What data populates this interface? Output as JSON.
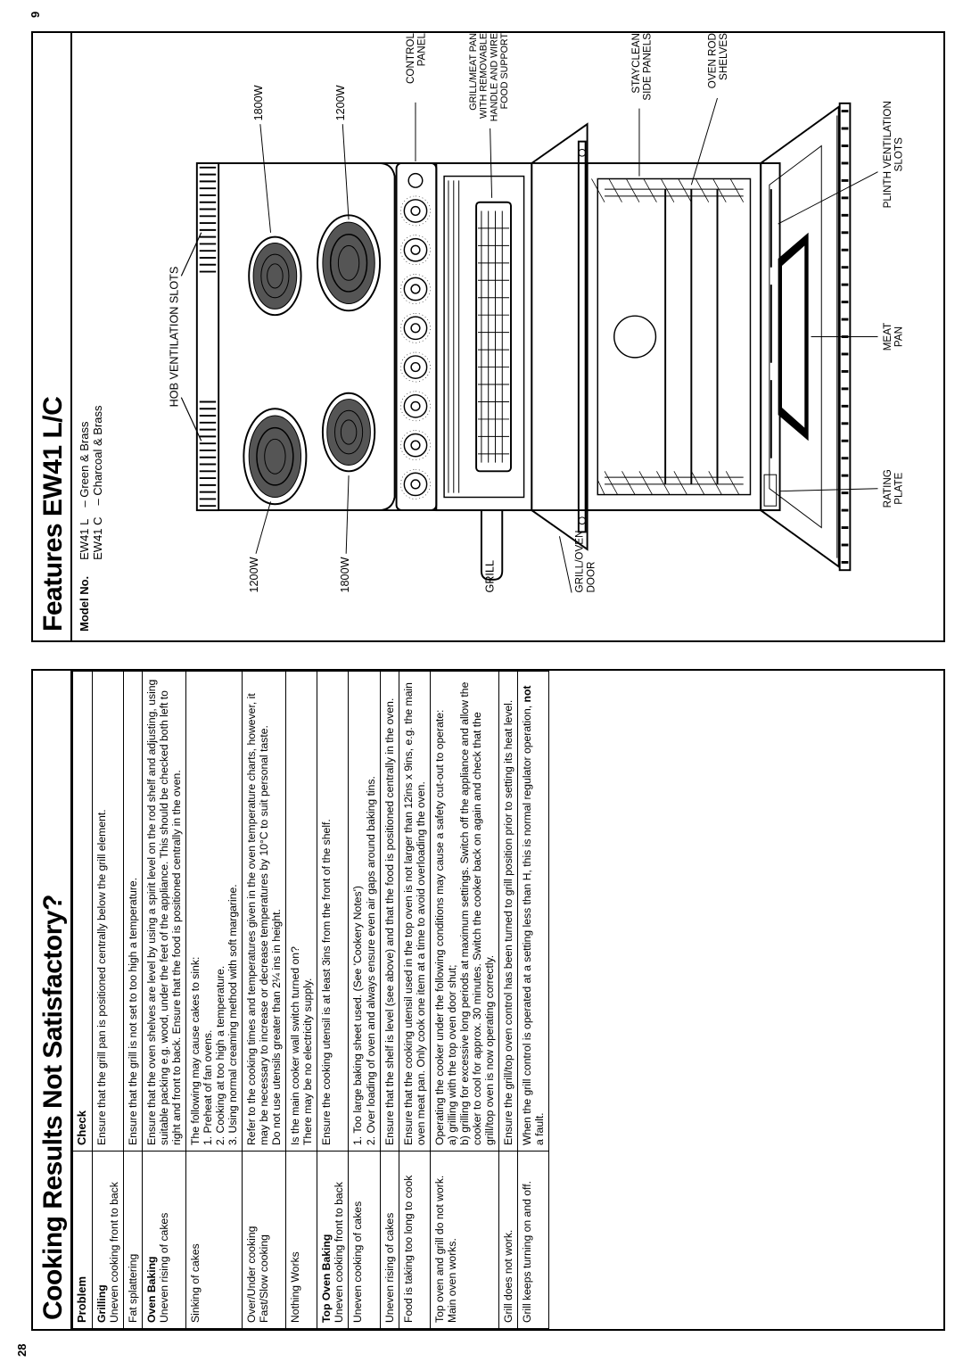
{
  "left": {
    "title": "Cooking Results Not Satisfactory?",
    "head_problem": "Problem",
    "head_check": "Check",
    "rows": [
      {
        "problem": "<b>Grilling</b><br>Uneven cooking front to back",
        "check": "Ensure that the grill pan is positioned centrally below the grill element."
      },
      {
        "problem": "Fat splattering",
        "check": "Ensure that the grill is not set to too high a temperature."
      },
      {
        "problem": "<b>Oven Baking</b><br>Uneven rising of cakes",
        "check": "Ensure that the oven shelves are level by using a spirit level on the rod shelf and adjusting, using suitable packing e.g. wood, under the feet of the appliance. This should be checked both left to right and front to back. Ensure that the food is positioned centrally in the oven."
      },
      {
        "problem": "Sinking of cakes",
        "check": "The following may cause cakes to sink:<br>1. Preheat of fan ovens.<br>2. Cooking at too high a temperature.<br>3. Using normal creaming method with soft margarine."
      },
      {
        "problem": "Over/Under cooking<br>Fast/Slow cooking",
        "check": "Refer to the cooking times and temperatures given in the oven temperature charts, however, it may be necessary to increase or decrease temperatures by 10°C to suit personal taste.<br>Do not use utensils greater than 2¼ ins in height."
      },
      {
        "problem": "Nothing Works",
        "check": "Is the main cooker wall switch turned on?<br>There may be no electricity supply."
      },
      {
        "problem": "<b>Top Oven Baking</b><br>Uneven cooking front to back",
        "check": "Ensure the cooking utensil is at least 3ins from the front of the shelf."
      },
      {
        "problem": "Uneven cooking of cakes",
        "check": "1. Too large baking sheet used. (See 'Cookery Notes')<br>2. Over loading of oven and always ensure even air gaps around baking tins."
      },
      {
        "problem": "Uneven rising of cakes",
        "check": "Ensure that the shelf is level (see above) and that the food is positioned centrally in the oven."
      },
      {
        "problem": "Food is taking too long to cook",
        "check": "Ensure that the cooking utensil used in the top oven is not larger than 12ins x 9ins, e.g. the main oven meat pan. Only cook one item at a time to avoid overloading the oven."
      },
      {
        "problem": "Top oven and grill do not work. Main oven works.",
        "check": "Operating the cooker under the following conditions may cause a safety cut-out to operate:<br>a) grilling with the top oven door shut;<br>b) grilling for excessive long periods at maximum settings. Switch off the appliance and allow the cooker to cool for approx. 30 minutes. Switch the cooker back on again and check that the grill/top oven is now operating correctly."
      },
      {
        "problem": "Grill does not work.",
        "check": "Ensure the grill/top oven control has been turned to grill position prior to setting its heat level."
      },
      {
        "problem": "Grill keeps turning on and off.",
        "check": "When the grill control is operated at a setting less than H, this is normal regulator operation, <b>not</b> a fault."
      }
    ]
  },
  "right": {
    "title": "Features EW41 L/C",
    "model_label": "Model No.",
    "model_lines": "EW41 L – Green & Brass<br>EW41 C – Charcoal & Brass",
    "labels": {
      "hob_vent": "HOB VENTILATION SLOTS",
      "w1800_left": "1800W",
      "w1200_top": "1200W",
      "w1200_left": "1200W",
      "w1800_top": "1800W",
      "control_panel": "CONTROL\nPANEL",
      "grill": "GRILL",
      "grill_pan": "GRILL/MEAT PAN\nWITH REMOVABLE\nHANDLE AND WIRE\nFOOD SUPPORT",
      "grill_oven_door": "GRILL/OVEN\nDOOR",
      "stayclean": "STAYCLEAN\nSIDE PANELS",
      "oven_rod": "OVEN ROD\nSHELVES",
      "rating_plate": "RATING\nPLATE",
      "meat_pan": "MEAT\nPAN",
      "plinth_vent": "PLINTH VENTILATION\nSLOTS"
    }
  },
  "page_left": "28",
  "page_right": "9",
  "colors": {
    "ink": "#000000",
    "paper": "#ffffff",
    "ring_fill": "#555555"
  },
  "fonts": {
    "body_pt": 12,
    "title_pt": 30,
    "label_pt": 11
  }
}
